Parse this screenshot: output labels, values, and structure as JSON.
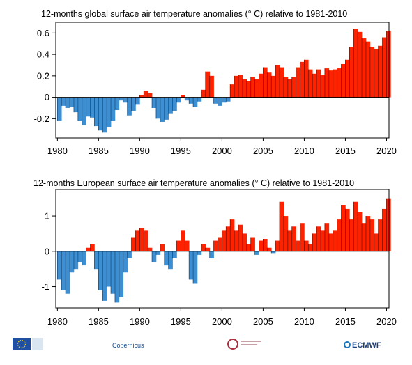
{
  "chart_data": [
    {
      "type": "area",
      "title": "12-months  global surface air temperature anomalies (° C) relative to 1981-2010",
      "xlabel": "",
      "ylabel": "",
      "xlim": [
        1979.8,
        2020.3
      ],
      "ylim": [
        -0.38,
        0.7
      ],
      "xticks": [
        "1980",
        "1985",
        "1990",
        "1995",
        "2000",
        "2005",
        "2010",
        "2015",
        "2020"
      ],
      "yticks": [
        {
          "v": 0.6,
          "label": "0.6"
        },
        {
          "v": 0.4,
          "label": "0.4"
        },
        {
          "v": 0.2,
          "label": "0.2"
        },
        {
          "v": 0,
          "label": "0"
        },
        {
          "v": -0.2,
          "label": "-0.2"
        }
      ],
      "positive_color": "#ff2200",
      "negative_color": "#3d8fd1",
      "series": [
        {
          "x": [
            1980.0,
            1980.5,
            1981.0,
            1981.5,
            1982.0,
            1982.5,
            1983.0,
            1983.5,
            1984.0,
            1984.5,
            1985.0,
            1985.5,
            1986.0,
            1986.5,
            1987.0,
            1987.5,
            1988.0,
            1988.5,
            1989.0,
            1989.5,
            1990.0,
            1990.5,
            1991.0,
            1991.5,
            1992.0,
            1992.5,
            1993.0,
            1993.5,
            1994.0,
            1994.5,
            1995.0,
            1995.5,
            1996.0,
            1996.5,
            1997.0,
            1997.5,
            1998.0,
            1998.5,
            1999.0,
            1999.5,
            2000.0,
            2000.5,
            2001.0,
            2001.5,
            2002.0,
            2002.5,
            2003.0,
            2003.5,
            2004.0,
            2004.5,
            2005.0,
            2005.5,
            2006.0,
            2006.5,
            2007.0,
            2007.5,
            2008.0,
            2008.5,
            2009.0,
            2009.5,
            2010.0,
            2010.5,
            2011.0,
            2011.5,
            2012.0,
            2012.5,
            2013.0,
            2013.5,
            2014.0,
            2014.5,
            2015.0,
            2015.5,
            2016.0,
            2016.5,
            2017.0,
            2017.5,
            2018.0,
            2018.5,
            2019.0,
            2019.5,
            2020.0
          ],
          "values": [
            -0.22,
            -0.08,
            -0.1,
            -0.09,
            -0.14,
            -0.22,
            -0.26,
            -0.18,
            -0.19,
            -0.27,
            -0.31,
            -0.33,
            -0.28,
            -0.22,
            -0.12,
            -0.03,
            -0.05,
            -0.17,
            -0.13,
            -0.07,
            0.02,
            0.06,
            0.04,
            -0.1,
            -0.2,
            -0.23,
            -0.21,
            -0.15,
            -0.13,
            -0.05,
            0.02,
            -0.03,
            -0.06,
            -0.09,
            -0.04,
            0.07,
            0.24,
            0.2,
            -0.06,
            -0.08,
            -0.05,
            -0.04,
            0.12,
            0.2,
            0.21,
            0.17,
            0.15,
            0.19,
            0.17,
            0.22,
            0.28,
            0.23,
            0.2,
            0.3,
            0.28,
            0.19,
            0.17,
            0.19,
            0.28,
            0.33,
            0.35,
            0.26,
            0.22,
            0.26,
            0.21,
            0.27,
            0.25,
            0.26,
            0.27,
            0.31,
            0.35,
            0.47,
            0.64,
            0.61,
            0.55,
            0.52,
            0.47,
            0.45,
            0.48,
            0.56,
            0.62
          ]
        }
      ]
    },
    {
      "type": "area",
      "title": "12-months  European surface air temperature anomalies (° C) relative to 1981-2010",
      "xlabel": "",
      "ylabel": "",
      "xlim": [
        1979.8,
        2020.3
      ],
      "ylim": [
        -1.6,
        1.75
      ],
      "xticks": [
        "1980",
        "1985",
        "1990",
        "1995",
        "2000",
        "2005",
        "2010",
        "2015",
        "2020"
      ],
      "yticks": [
        {
          "v": 1,
          "label": "1"
        },
        {
          "v": 0,
          "label": "0"
        },
        {
          "v": -1,
          "label": "-1"
        }
      ],
      "positive_color": "#ff2200",
      "negative_color": "#3d8fd1",
      "series": [
        {
          "x": [
            1980.0,
            1980.5,
            1981.0,
            1981.5,
            1982.0,
            1982.5,
            1983.0,
            1983.5,
            1984.0,
            1984.5,
            1985.0,
            1985.5,
            1986.0,
            1986.5,
            1987.0,
            1987.5,
            1988.0,
            1988.5,
            1989.0,
            1989.5,
            1990.0,
            1990.5,
            1991.0,
            1991.5,
            1992.0,
            1992.5,
            1993.0,
            1993.5,
            1994.0,
            1994.5,
            1995.0,
            1995.5,
            1996.0,
            1996.5,
            1997.0,
            1997.5,
            1998.0,
            1998.5,
            1999.0,
            1999.5,
            2000.0,
            2000.5,
            2001.0,
            2001.5,
            2002.0,
            2002.5,
            2003.0,
            2003.5,
            2004.0,
            2004.5,
            2005.0,
            2005.5,
            2006.0,
            2006.5,
            2007.0,
            2007.5,
            2008.0,
            2008.5,
            2009.0,
            2009.5,
            2010.0,
            2010.5,
            2011.0,
            2011.5,
            2012.0,
            2012.5,
            2013.0,
            2013.5,
            2014.0,
            2014.5,
            2015.0,
            2015.5,
            2016.0,
            2016.5,
            2017.0,
            2017.5,
            2018.0,
            2018.5,
            2019.0,
            2019.5,
            2020.0
          ],
          "values": [
            -0.8,
            -1.1,
            -1.2,
            -0.6,
            -0.5,
            -0.3,
            -0.4,
            0.1,
            0.2,
            -0.5,
            -1.1,
            -1.4,
            -1.0,
            -1.2,
            -1.45,
            -1.3,
            -0.6,
            -0.2,
            0.4,
            0.6,
            0.65,
            0.6,
            0.1,
            -0.3,
            -0.1,
            0.2,
            -0.4,
            -0.5,
            -0.2,
            0.3,
            0.6,
            0.3,
            -0.8,
            -0.9,
            -0.1,
            0.2,
            0.1,
            -0.2,
            0.3,
            0.4,
            0.6,
            0.7,
            0.9,
            0.6,
            0.75,
            0.5,
            0.2,
            0.4,
            -0.1,
            0.3,
            0.35,
            0.1,
            -0.05,
            0.3,
            1.4,
            1.0,
            0.6,
            0.7,
            0.3,
            0.8,
            0.3,
            0.2,
            0.5,
            0.7,
            0.6,
            0.8,
            0.5,
            0.6,
            0.9,
            1.3,
            1.2,
            0.9,
            1.4,
            1.1,
            0.8,
            1.0,
            0.9,
            0.5,
            0.9,
            1.2,
            1.5
          ]
        }
      ]
    }
  ],
  "logos": {
    "eu": "eu-flag-icon",
    "copernicus": "Copernicus",
    "c3s": "C",
    "ecmwf": "ECMWF"
  }
}
